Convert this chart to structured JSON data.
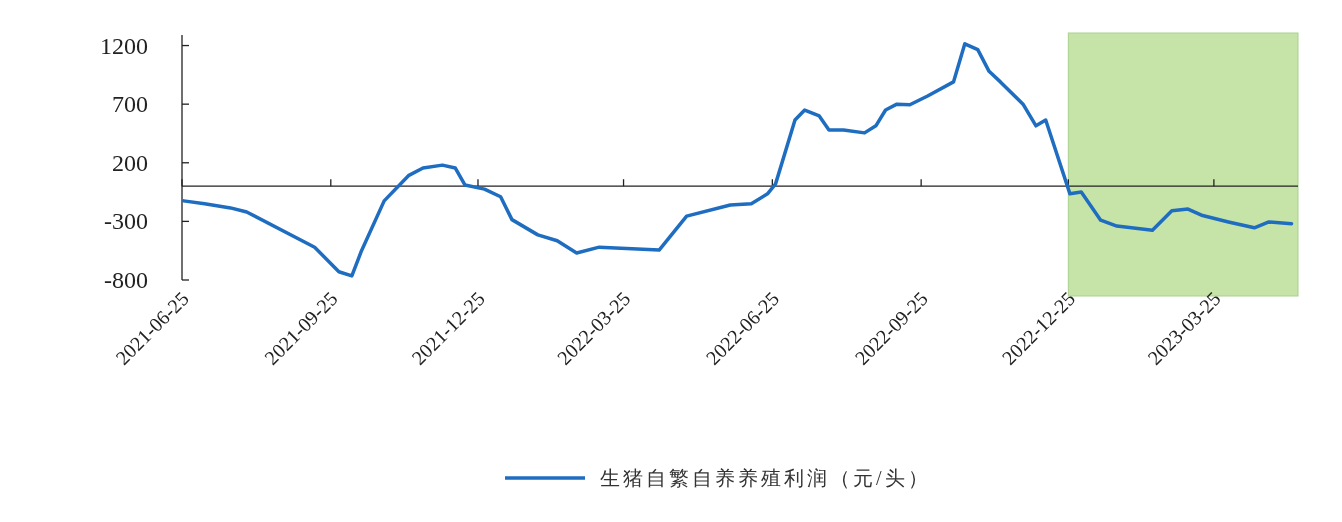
{
  "chart_data": {
    "type": "line",
    "x": [
      "2021-06-26",
      "2021-07-09",
      "2021-07-25",
      "2021-08-04",
      "2021-09-15",
      "2021-09-30",
      "2021-10-08",
      "2021-10-14",
      "2021-10-28",
      "2021-11-12",
      "2021-11-21",
      "2021-12-03",
      "2021-12-11",
      "2021-12-17",
      "2021-12-29",
      "2022-01-08",
      "2022-01-15",
      "2022-01-31",
      "2022-02-12",
      "2022-02-24",
      "2022-03-10",
      "2022-04-16",
      "2022-05-03",
      "2022-05-30",
      "2022-06-12",
      "2022-06-22",
      "2022-06-27",
      "2022-07-09",
      "2022-07-15",
      "2022-07-24",
      "2022-07-30",
      "2022-08-08",
      "2022-08-21",
      "2022-08-28",
      "2022-09-03",
      "2022-09-10",
      "2022-09-18",
      "2022-09-29",
      "2022-10-15",
      "2022-10-22",
      "2022-10-30",
      "2022-11-06",
      "2022-11-13",
      "2022-11-27",
      "2022-12-05",
      "2022-12-11",
      "2022-12-26",
      "2023-01-02",
      "2023-01-14",
      "2023-01-24",
      "2023-02-15",
      "2023-02-27",
      "2023-03-09",
      "2023-03-18",
      "2023-04-03",
      "2023-04-19",
      "2023-04-28",
      "2023-05-12"
    ],
    "series": [
      {
        "name": "生猪自繁自养养殖利润（元/头）",
        "color": "#1f6dc0",
        "values": [
          -125,
          -150,
          -185,
          -220,
          -520,
          -730,
          -765,
          -550,
          -125,
          90,
          155,
          180,
          155,
          10,
          -25,
          -90,
          -285,
          -415,
          -465,
          -570,
          -520,
          -545,
          -255,
          -160,
          -150,
          -65,
          20,
          565,
          650,
          600,
          480,
          480,
          455,
          515,
          650,
          700,
          695,
          770,
          890,
          1215,
          1165,
          980,
          890,
          700,
          515,
          565,
          -65,
          -50,
          -290,
          -340,
          -375,
          -210,
          -195,
          -250,
          -305,
          -355,
          -305,
          -320
        ]
      }
    ],
    "xlim": [
      "2021-06-25",
      "2023-05-16"
    ],
    "xticks": [
      "2021-06-25",
      "2021-09-25",
      "2021-12-25",
      "2022-03-25",
      "2022-06-25",
      "2022-09-25",
      "2022-12-25",
      "2023-03-25"
    ],
    "ylim": [
      -800,
      1290
    ],
    "yticks": [
      1200,
      700,
      200,
      -300,
      -800
    ],
    "bands": [
      {
        "axis": "x",
        "from": "2022-12-25",
        "to": "2023-05-16",
        "color": "#c6e4a8"
      }
    ],
    "grid": false,
    "legend": "bottom",
    "line_style": "solid",
    "marker": "none"
  }
}
